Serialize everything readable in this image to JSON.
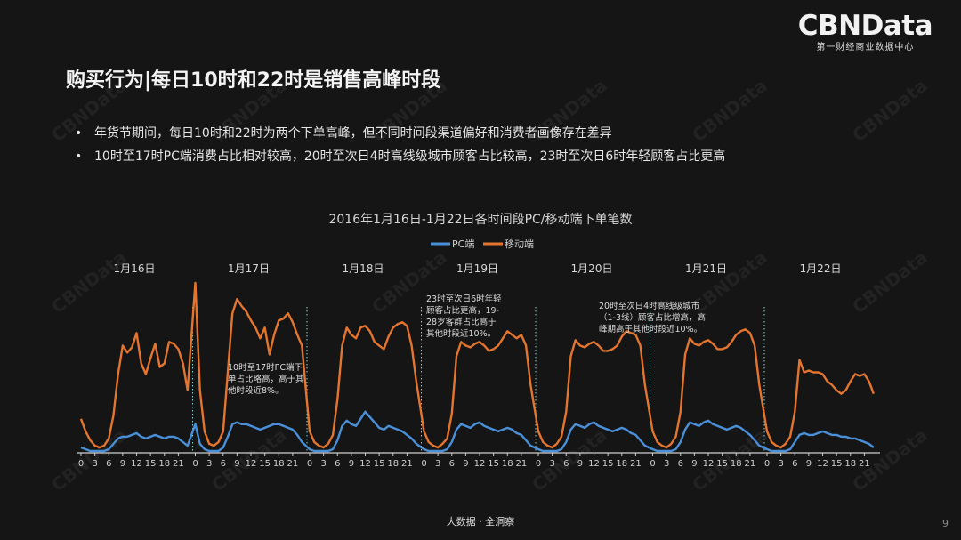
{
  "logo": {
    "main": "CBNData",
    "sub": "第一财经商业数据中心"
  },
  "slide_title": "购买行为|每日10时和22时是销售高峰时段",
  "bullets": [
    "年货节期间，每日10时和22时为两个下单高峰，但不同时间段渠道偏好和消费者画像存在差异",
    "10时至17时PC端消费占比相对较高，20时至次日4时高线级城市顾客占比较高，23时至次日6时年轻顾客占比更高"
  ],
  "footer": "大数据 · 全洞察",
  "page_number": "9",
  "watermark": "CBNData",
  "colors": {
    "pc": "#4a90d9",
    "mobile": "#e3752f",
    "axis": "#cfcfcf",
    "divider": "#7fd6d6"
  },
  "chart_data": {
    "type": "line",
    "title": "2016年1月16日-1月22日各时间段PC/移动端下单笔数",
    "legend": [
      "PC端",
      "移动端"
    ],
    "legend_position": "top-center",
    "days": [
      "1月16日",
      "1月17日",
      "1月18日",
      "1月19日",
      "1月20日",
      "1月21日",
      "1月22日"
    ],
    "x_tick_labels": [
      "0",
      "3",
      "6",
      "9",
      "12",
      "15",
      "18",
      "21"
    ],
    "grid": false,
    "y_axis_shown": false,
    "unit": "relative order count (no axis values shown)",
    "series": [
      {
        "name": "移动端",
        "values": [
          19,
          12,
          7,
          4,
          3,
          4,
          8,
          21,
          44,
          60,
          56,
          59,
          67,
          50,
          44,
          53,
          61,
          48,
          50,
          62,
          61,
          58,
          50,
          35,
          95,
          35,
          12,
          5,
          4,
          6,
          12,
          45,
          78,
          86,
          82,
          79,
          74,
          70,
          64,
          70,
          55,
          66,
          74,
          75,
          78,
          73,
          66,
          60,
          12,
          6,
          4,
          3,
          5,
          10,
          30,
          60,
          70,
          66,
          64,
          70,
          71,
          68,
          62,
          60,
          58,
          65,
          70,
          72,
          73,
          71,
          60,
          40,
          12,
          6,
          4,
          3,
          5,
          8,
          22,
          54,
          62,
          60,
          59,
          61,
          62,
          60,
          57,
          58,
          60,
          64,
          68,
          66,
          64,
          66,
          60,
          38,
          12,
          6,
          4,
          3,
          5,
          9,
          23,
          54,
          63,
          60,
          59,
          61,
          62,
          60,
          57,
          57,
          58,
          60,
          65,
          68,
          67,
          66,
          60,
          38,
          12,
          6,
          4,
          3,
          5,
          9,
          23,
          55,
          64,
          61,
          60,
          62,
          63,
          61,
          58,
          58,
          59,
          62,
          66,
          68,
          69,
          67,
          60,
          38,
          12,
          6,
          4,
          3,
          5,
          9,
          23,
          52,
          45,
          46,
          45,
          45,
          44,
          40,
          38,
          35,
          33,
          35,
          40,
          44,
          43,
          44,
          40,
          33
        ]
      },
      {
        "name": "PC端",
        "values": [
          3,
          2,
          1,
          1,
          1,
          1,
          2,
          5,
          8,
          9,
          9,
          10,
          11,
          9,
          8,
          9,
          10,
          9,
          8,
          9,
          9,
          8,
          6,
          4,
          16,
          5,
          2,
          1,
          1,
          1,
          3,
          9,
          16,
          17,
          16,
          16,
          15,
          14,
          13,
          14,
          15,
          16,
          16,
          15,
          14,
          13,
          10,
          6,
          2,
          1,
          1,
          1,
          1,
          2,
          7,
          15,
          18,
          16,
          15,
          19,
          23,
          20,
          17,
          14,
          13,
          15,
          14,
          13,
          12,
          10,
          8,
          5,
          2,
          1,
          1,
          1,
          1,
          2,
          6,
          13,
          16,
          15,
          14,
          16,
          17,
          15,
          14,
          13,
          12,
          13,
          14,
          13,
          11,
          10,
          7,
          4,
          2,
          1,
          1,
          1,
          1,
          2,
          6,
          13,
          16,
          15,
          14,
          16,
          17,
          15,
          14,
          13,
          12,
          13,
          14,
          13,
          11,
          10,
          7,
          4,
          2,
          1,
          1,
          1,
          1,
          2,
          6,
          13,
          17,
          16,
          15,
          17,
          18,
          16,
          15,
          14,
          13,
          14,
          15,
          14,
          12,
          10,
          7,
          4,
          2,
          1,
          1,
          1,
          1,
          2,
          6,
          10,
          11,
          10,
          10,
          11,
          12,
          11,
          10,
          10,
          9,
          9,
          8,
          8,
          7,
          6,
          5,
          3
        ]
      }
    ],
    "annotations": [
      {
        "text": [
          "10时至17时PC端下",
          "单占比略高，高于其",
          "他时段近8%。"
        ]
      },
      {
        "text": [
          "23时至次日6时年轻",
          "顾客占比更高，19-",
          "28岁客群占比高于",
          "其他时段近10%。"
        ]
      },
      {
        "text": [
          "20时至次日4时高线级城市",
          "（1-3线）顾客占比增高，高",
          "峰期高于其他时段近10%。"
        ]
      }
    ]
  }
}
